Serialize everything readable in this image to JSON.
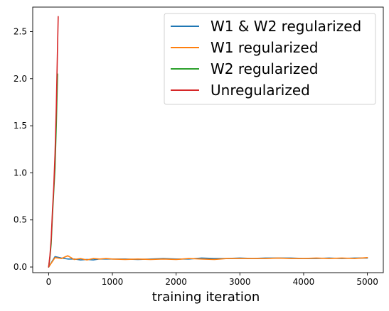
{
  "chart_data": {
    "type": "line",
    "title": "",
    "xlabel": "training iteration",
    "ylabel": "",
    "xlim": [
      -250,
      5250
    ],
    "ylim": [
      -0.06,
      2.76
    ],
    "xticks": [
      0,
      1000,
      2000,
      3000,
      4000,
      5000
    ],
    "xtick_labels": [
      "0",
      "1000",
      "2000",
      "3000",
      "4000",
      "5000"
    ],
    "yticks": [
      0.0,
      0.5,
      1.0,
      1.5,
      2.0,
      2.5
    ],
    "ytick_labels": [
      "0.0",
      "0.5",
      "1.0",
      "1.5",
      "2.0",
      "2.5"
    ],
    "grid": false,
    "legend_position": "upper right",
    "series": [
      {
        "name": "W1 & W2 regularized",
        "color": "#1f77b4",
        "x": [
          0,
          100,
          200,
          300,
          400,
          500,
          600,
          700,
          800,
          900,
          1000,
          1200,
          1400,
          1600,
          1800,
          2000,
          2200,
          2400,
          2600,
          2800,
          3000,
          3200,
          3400,
          3600,
          3800,
          4000,
          4200,
          4400,
          4600,
          4800,
          5000
        ],
        "y": [
          0.0,
          0.11,
          0.095,
          0.085,
          0.085,
          0.075,
          0.08,
          0.075,
          0.085,
          0.085,
          0.085,
          0.085,
          0.08,
          0.085,
          0.09,
          0.085,
          0.085,
          0.095,
          0.09,
          0.09,
          0.095,
          0.09,
          0.095,
          0.095,
          0.095,
          0.09,
          0.09,
          0.095,
          0.09,
          0.095,
          0.095
        ]
      },
      {
        "name": "W1 regularized",
        "color": "#ff7f0e",
        "x": [
          0,
          100,
          200,
          300,
          400,
          500,
          600,
          700,
          800,
          900,
          1000,
          1200,
          1400,
          1600,
          1800,
          2000,
          2200,
          2400,
          2600,
          2800,
          3000,
          3200,
          3400,
          3600,
          3800,
          4000,
          4200,
          4400,
          4600,
          4800,
          5000
        ],
        "y": [
          0.0,
          0.1,
          0.09,
          0.12,
          0.08,
          0.09,
          0.075,
          0.09,
          0.085,
          0.09,
          0.085,
          0.08,
          0.085,
          0.08,
          0.085,
          0.08,
          0.09,
          0.085,
          0.08,
          0.09,
          0.09,
          0.09,
          0.09,
          0.095,
          0.09,
          0.09,
          0.095,
          0.09,
          0.095,
          0.09,
          0.1
        ]
      },
      {
        "name": "W2 regularized",
        "color": "#2ca02c",
        "x": [
          0,
          20,
          40,
          60,
          80,
          100,
          120,
          140
        ],
        "y": [
          0.0,
          0.1,
          0.25,
          0.55,
          0.8,
          1.05,
          1.5,
          2.05
        ]
      },
      {
        "name": "Unregularized",
        "color": "#d62728",
        "x": [
          0,
          20,
          40,
          60,
          80,
          100,
          120,
          140,
          150
        ],
        "y": [
          0.0,
          0.12,
          0.3,
          0.6,
          0.85,
          1.2,
          1.7,
          2.35,
          2.66
        ]
      }
    ]
  }
}
